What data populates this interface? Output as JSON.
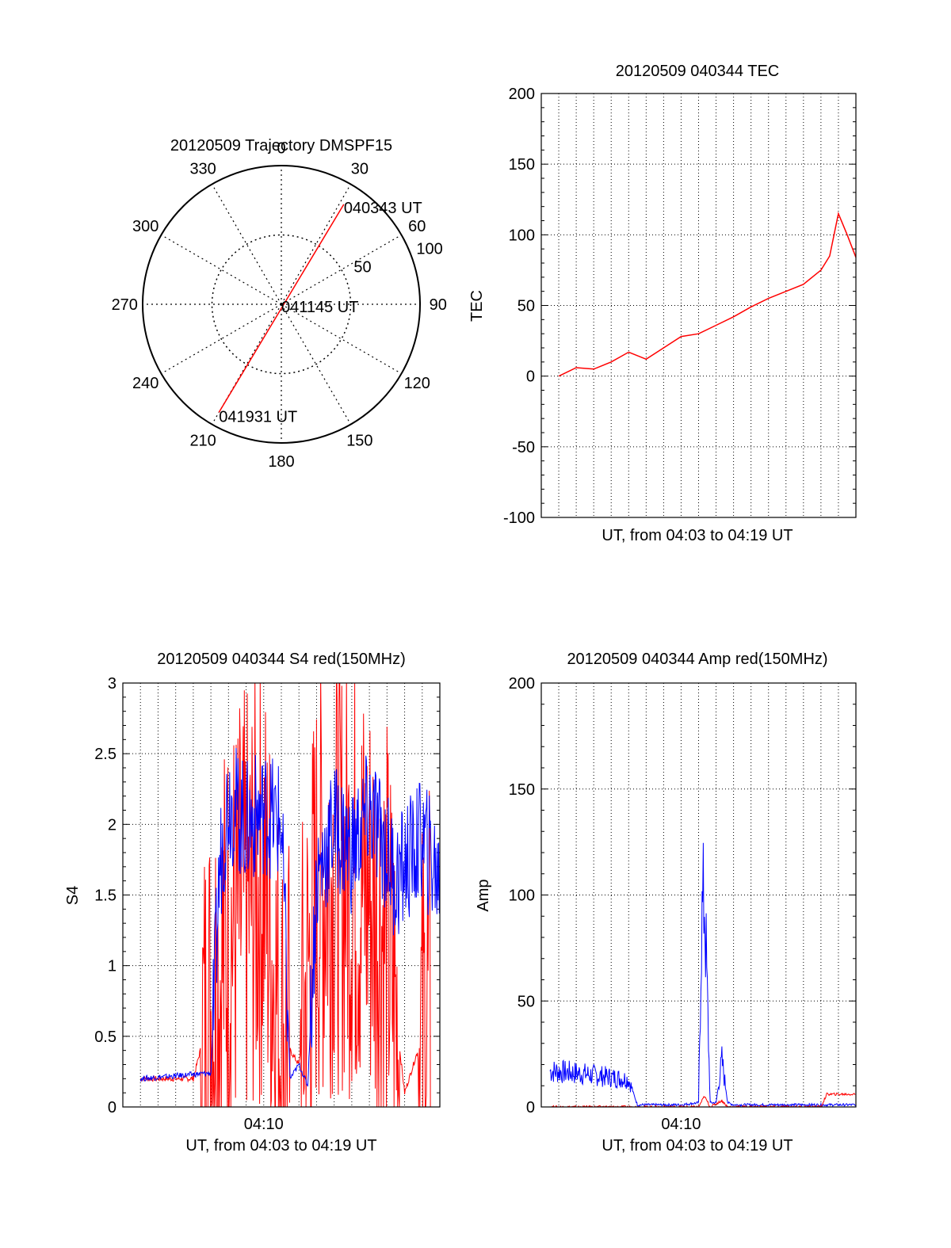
{
  "colors": {
    "red": "#ff0000",
    "blue": "#0000ff",
    "axis": "#000000",
    "grid": "#000000"
  },
  "chart_data": [
    {
      "id": "trajectory",
      "type": "polar",
      "title": "20120509 Trajectory DMSPF15",
      "angle_labels": [
        "0",
        "30",
        "60",
        "90",
        "120",
        "150",
        "180",
        "210",
        "240",
        "270",
        "300",
        "330"
      ],
      "radial_max": 100,
      "radial_ticks": [
        50,
        100
      ],
      "radial_tick_labels": [
        "50",
        "100"
      ],
      "grid": true,
      "series": [
        {
          "color": "red",
          "points": [
            [
              32,
              85
            ],
            [
              210,
              90
            ]
          ]
        }
      ],
      "annotations": [
        {
          "text": "040343 UT",
          "azimuth": 32,
          "radius": 85
        },
        {
          "text": "041145 UT",
          "azimuth": 0,
          "radius": 0
        },
        {
          "text": "041931 UT",
          "azimuth": 210,
          "radius": 90
        }
      ]
    },
    {
      "id": "tec",
      "type": "line",
      "title": "20120509 040344 TEC",
      "xlabel": "UT, from 04:03 to 04:19 UT",
      "ylabel": "TEC",
      "xlim": [
        "04:02:00",
        "04:20:00"
      ],
      "ylim": [
        -100,
        200
      ],
      "ytick_labels": [
        "-100",
        "-50",
        "0",
        "50",
        "100",
        "150",
        "200"
      ],
      "grid": true,
      "series": [
        {
          "color": "red",
          "x": [
            "04:03:00",
            "04:04:00",
            "04:05:00",
            "04:06:00",
            "04:07:00",
            "04:08:00",
            "04:09:00",
            "04:10:00",
            "04:11:00",
            "04:12:00",
            "04:13:00",
            "04:14:00",
            "04:15:00",
            "04:16:00",
            "04:17:00",
            "04:18:00",
            "04:18:30",
            "04:19:00",
            "04:19:30",
            "04:20:00"
          ],
          "y": [
            0,
            6,
            5,
            10,
            17,
            12,
            20,
            28,
            30,
            36,
            42,
            49,
            55,
            60,
            65,
            75,
            85,
            115,
            100,
            84
          ]
        }
      ]
    },
    {
      "id": "s4",
      "type": "line",
      "title": "20120509 040344 S4 red(150MHz)",
      "xlabel": "UT, from 04:03 to 04:19 UT",
      "ylabel": "S4",
      "xlim": [
        "04:02:00",
        "04:20:00"
      ],
      "ylim": [
        0,
        3
      ],
      "ytick_labels": [
        "0",
        "0.5",
        "1",
        "1.5",
        "2",
        "2.5",
        "3"
      ],
      "xtick_labels": [
        "04:10"
      ],
      "xtick_values": [
        "04:10:00"
      ],
      "grid": true,
      "series": [
        {
          "color": "red",
          "x": [
            "04:03:00",
            "04:06:00",
            "04:08:00",
            "04:10:00",
            "04:11:00",
            "04:12:00",
            "04:13:00",
            "04:14:00",
            "04:15:00",
            "04:16:00",
            "04:17:00",
            "04:18:00",
            "04:19:00",
            "04:19:30"
          ],
          "y": [
            0.2,
            0.2,
            1.2,
            1.6,
            0.5,
            0.3,
            1.5,
            1.7,
            1.6,
            1.5,
            1.2,
            0.1,
            0.5,
            0.8
          ],
          "note_values": []
        },
        {
          "color": "blue",
          "x": [
            "04:03:00",
            "04:04:00",
            "04:05:00",
            "04:06:00",
            "04:07:00",
            "04:07:30",
            "04:08:00",
            "04:09:00",
            "04:10:00",
            "04:11:00",
            "04:11:30",
            "04:12:00",
            "04:12:30",
            "04:13:00",
            "04:14:00",
            "04:15:00",
            "04:16:00",
            "04:17:00",
            "04:17:30",
            "04:18:00",
            "04:19:00",
            "04:20:00"
          ],
          "y": [
            0.2,
            0.21,
            0.22,
            0.23,
            0.24,
            1.7,
            2.2,
            2.0,
            2.1,
            2.0,
            0.2,
            0.3,
            0.15,
            1.6,
            2.0,
            1.8,
            2.1,
            1.8,
            1.6,
            1.7,
            1.9,
            1.6
          ]
        }
      ]
    },
    {
      "id": "amp",
      "type": "line",
      "title": "20120509 040344 Amp red(150MHz)",
      "xlabel": "UT, from 04:03 to 04:19 UT",
      "ylabel": "Amp",
      "xlim": [
        "04:02:00",
        "04:20:00"
      ],
      "ylim": [
        0,
        200
      ],
      "ytick_labels": [
        "0",
        "50",
        "100",
        "150",
        "200"
      ],
      "xtick_labels": [
        "04:10"
      ],
      "xtick_values": [
        "04:10:00"
      ],
      "grid": true,
      "series": [
        {
          "color": "blue",
          "x": [
            "04:02:30",
            "04:04:00",
            "04:05:00",
            "04:06:00",
            "04:07:00",
            "04:07:30",
            "04:08:00",
            "04:09:00",
            "04:10:00",
            "04:11:00",
            "04:11:10",
            "04:11:20",
            "04:11:40",
            "04:12:00",
            "04:12:20",
            "04:12:40",
            "04:13:00",
            "04:15:00",
            "04:17:00",
            "04:19:00",
            "04:20:00"
          ],
          "y": [
            17,
            16,
            15,
            14,
            13,
            1,
            1,
            1,
            1,
            2,
            85,
            100,
            2,
            2,
            22,
            2,
            1,
            1,
            1,
            1,
            1
          ]
        },
        {
          "color": "red",
          "x": [
            "04:02:30",
            "04:07:30",
            "04:11:00",
            "04:11:20",
            "04:11:40",
            "04:12:20",
            "04:12:40",
            "04:18:00",
            "04:18:20",
            "04:20:00"
          ],
          "y": [
            0,
            0,
            0,
            5,
            0,
            3,
            0,
            0,
            6,
            6
          ]
        }
      ]
    }
  ]
}
